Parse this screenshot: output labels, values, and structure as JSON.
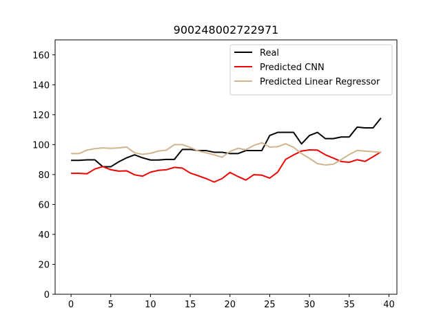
{
  "chart_data": {
    "type": "line",
    "title": "900248002722971",
    "xlabel": "",
    "ylabel": "",
    "xlim": [
      -2,
      41
    ],
    "ylim": [
      0,
      170
    ],
    "xticks": [
      0,
      5,
      10,
      15,
      20,
      25,
      30,
      35,
      40
    ],
    "yticks": [
      0,
      20,
      40,
      60,
      80,
      100,
      120,
      140,
      160
    ],
    "grid": false,
    "legend_position": "top-right",
    "x": [
      0,
      1,
      2,
      3,
      4,
      5,
      6,
      7,
      8,
      9,
      10,
      11,
      12,
      13,
      14,
      15,
      16,
      17,
      18,
      19,
      20,
      21,
      22,
      23,
      24,
      25,
      26,
      27,
      28,
      29,
      30,
      31,
      32,
      33,
      34,
      35,
      36,
      37,
      38,
      39
    ],
    "series": [
      {
        "name": "Real",
        "color": "#000000",
        "values": [
          89.5,
          89.5,
          89.8,
          89.8,
          85.2,
          85.2,
          88.5,
          91.2,
          93.2,
          91.2,
          89.7,
          89.7,
          90.1,
          90.1,
          96.8,
          96.8,
          96,
          96,
          94.9,
          94.9,
          94,
          94,
          96,
          96,
          96,
          106.1,
          108.2,
          108.2,
          108.2,
          100.5,
          106.1,
          108.2,
          104,
          104,
          105.1,
          105.1,
          111.7,
          111.2,
          111.2,
          117.8
        ]
      },
      {
        "name": "Predicted CNN",
        "color": "#ee0000",
        "values": [
          80.8,
          80.8,
          80.5,
          83.7,
          85.3,
          83.2,
          82.3,
          82.5,
          79.8,
          78.9,
          81.6,
          82.8,
          83.2,
          84.8,
          84.3,
          81,
          79.2,
          77.3,
          75,
          77.3,
          81.4,
          78.7,
          76.3,
          79.9,
          79.6,
          77.6,
          81.6,
          90.1,
          93.1,
          95.7,
          96.5,
          96.3,
          93.2,
          91,
          88.7,
          88.2,
          89.9,
          88.8,
          91.9,
          95.2
        ]
      },
      {
        "name": "Predicted Linear Regressor",
        "color": "#d2b48c",
        "values": [
          94,
          94,
          96.3,
          97.3,
          97.8,
          97.5,
          97.8,
          98.4,
          94.5,
          93.5,
          94.2,
          95.7,
          96.3,
          100,
          100,
          98.1,
          95.8,
          94.5,
          93.2,
          91.6,
          95.4,
          97.5,
          96.6,
          99.5,
          101.2,
          98.4,
          98.6,
          100.6,
          98.2,
          94,
          90.8,
          87.3,
          86.4,
          86.9,
          90,
          93.4,
          96.1,
          95.7,
          95.3,
          94.8
        ]
      }
    ]
  }
}
